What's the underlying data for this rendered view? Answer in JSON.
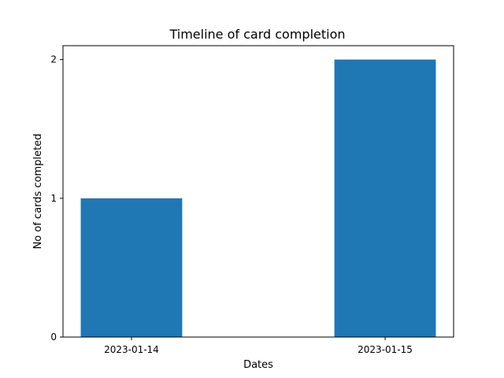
{
  "chart_data": {
    "type": "bar",
    "title": "Timeline of card completion",
    "xlabel": "Dates",
    "ylabel": "No of cards completed",
    "categories": [
      "2023-01-14",
      "2023-01-15"
    ],
    "values": [
      1,
      2
    ],
    "yticks": [
      0,
      1,
      2
    ],
    "ylim": [
      0,
      2.1
    ],
    "bar_color": "#1f77b4",
    "grid": false,
    "legend": false
  }
}
